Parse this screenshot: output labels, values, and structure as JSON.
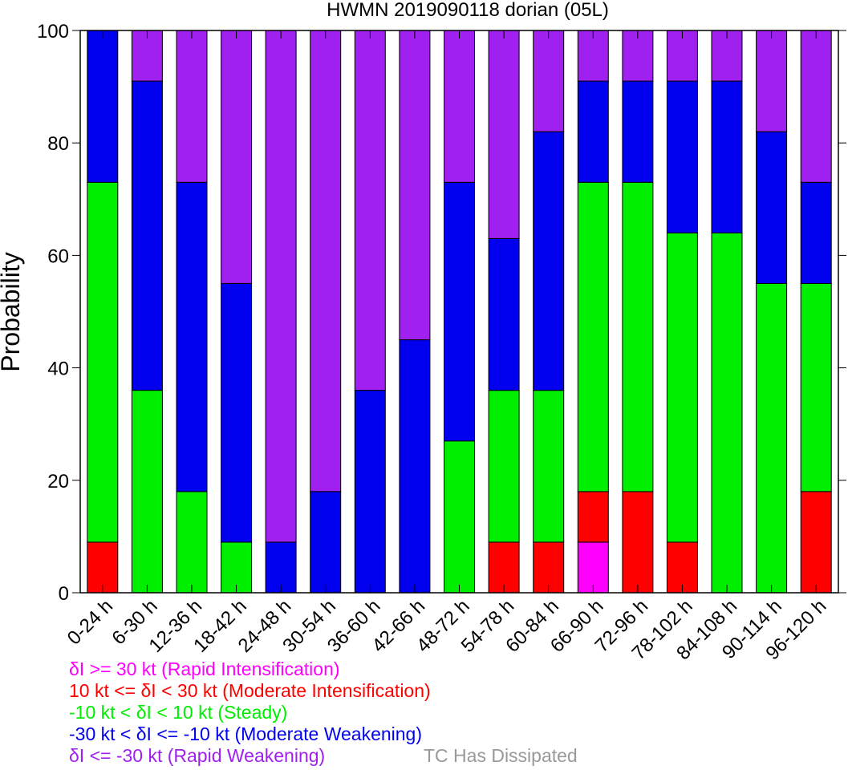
{
  "chart_data": {
    "type": "bar",
    "stacked": true,
    "title": "HWMN 2019090118 dorian (05L)",
    "ylabel": "Probability",
    "xlabel": "",
    "ylim": [
      0,
      100
    ],
    "yticks": [
      0,
      20,
      40,
      60,
      80,
      100
    ],
    "categories": [
      "0-24 h",
      "6-30 h",
      "12-36 h",
      "18-42 h",
      "24-48 h",
      "30-54 h",
      "36-60 h",
      "42-66 h",
      "48-72 h",
      "54-78 h",
      "60-84 h",
      "66-90 h",
      "72-96 h",
      "78-102 h",
      "84-108 h",
      "90-114 h",
      "96-120 h"
    ],
    "series": [
      {
        "name": "δI >= 30 kt (Rapid Intensification)",
        "color": "#ff00ff",
        "values": [
          0,
          0,
          0,
          0,
          0,
          0,
          0,
          0,
          0,
          0,
          0,
          9,
          0,
          0,
          0,
          0,
          0
        ]
      },
      {
        "name": "10 kt <= δI < 30 kt (Moderate Intensification)",
        "color": "#ff0000",
        "values": [
          9,
          0,
          0,
          0,
          0,
          0,
          0,
          0,
          0,
          9,
          9,
          9,
          18,
          9,
          0,
          0,
          18
        ]
      },
      {
        "name": "-10 kt < δI < 10 kt (Steady)",
        "color": "#00ee00",
        "values": [
          64,
          36,
          18,
          9,
          0,
          0,
          0,
          0,
          27,
          27,
          27,
          55,
          55,
          55,
          64,
          55,
          37
        ]
      },
      {
        "name": "-30 kt < δI <= -10 kt (Moderate Weakening)",
        "color": "#0000ee",
        "values": [
          27,
          55,
          55,
          46,
          9,
          18,
          36,
          45,
          46,
          27,
          46,
          18,
          18,
          27,
          27,
          27,
          18
        ]
      },
      {
        "name": "δI <= -30 kt (Rapid Weakening)",
        "color": "#a020f0",
        "values": [
          0,
          9,
          27,
          45,
          91,
          82,
          64,
          55,
          27,
          37,
          18,
          9,
          9,
          9,
          9,
          18,
          27
        ]
      }
    ],
    "grid": false,
    "legend": {
      "placement": "bottom-left",
      "dissipated_label": "TC Has Dissipated",
      "dissipated_color": "#999999"
    }
  }
}
